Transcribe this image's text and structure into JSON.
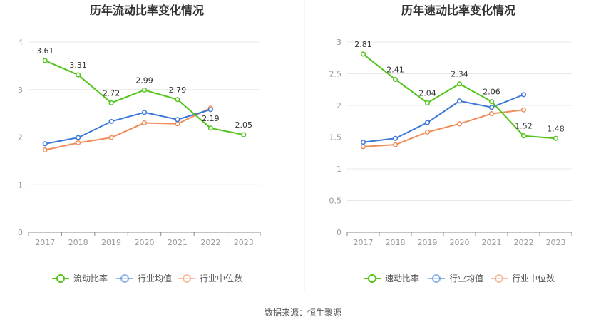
{
  "source_label": "数据来源：恒生聚源",
  "chart_data": [
    {
      "type": "line",
      "title": "历年流动比率变化情况",
      "categories": [
        "2017",
        "2018",
        "2019",
        "2020",
        "2021",
        "2022",
        "2023"
      ],
      "ylim": [
        0,
        4
      ],
      "yticks": [
        "0",
        "1",
        "2",
        "3",
        "4"
      ],
      "grid": true,
      "legend_position": "bottom",
      "series": [
        {
          "name": "流动比率",
          "color": "#52c41a",
          "values": [
            3.61,
            3.31,
            2.72,
            2.99,
            2.79,
            2.19,
            2.05
          ],
          "labels": [
            "3.61",
            "3.31",
            "2.72",
            "2.99",
            "2.79",
            "2.19",
            "2.05"
          ]
        },
        {
          "name": "行业均值",
          "color": "#3a77d8",
          "values": [
            1.86,
            1.99,
            2.33,
            2.52,
            2.37,
            2.58,
            null
          ]
        },
        {
          "name": "行业中位数",
          "color": "#f08c5a",
          "values": [
            1.73,
            1.88,
            1.99,
            2.3,
            2.28,
            2.61,
            null
          ]
        }
      ]
    },
    {
      "type": "line",
      "title": "历年速动比率变化情况",
      "categories": [
        "2017",
        "2018",
        "2019",
        "2020",
        "2021",
        "2022",
        "2023"
      ],
      "ylim": [
        0,
        3
      ],
      "yticks": [
        "0",
        "0.5",
        "1",
        "1.5",
        "2",
        "2.5",
        "3"
      ],
      "grid": true,
      "legend_position": "bottom",
      "series": [
        {
          "name": "速动比率",
          "color": "#52c41a",
          "values": [
            2.81,
            2.41,
            2.04,
            2.34,
            2.06,
            1.52,
            1.48
          ],
          "labels": [
            "2.81",
            "2.41",
            "2.04",
            "2.34",
            "2.06",
            "1.52",
            "1.48"
          ]
        },
        {
          "name": "行业均值",
          "color": "#3a77d8",
          "values": [
            1.42,
            1.48,
            1.73,
            2.07,
            1.97,
            2.17,
            null
          ]
        },
        {
          "name": "行业中位数",
          "color": "#f08c5a",
          "values": [
            1.35,
            1.38,
            1.58,
            1.71,
            1.87,
            1.93,
            null
          ]
        }
      ]
    }
  ]
}
